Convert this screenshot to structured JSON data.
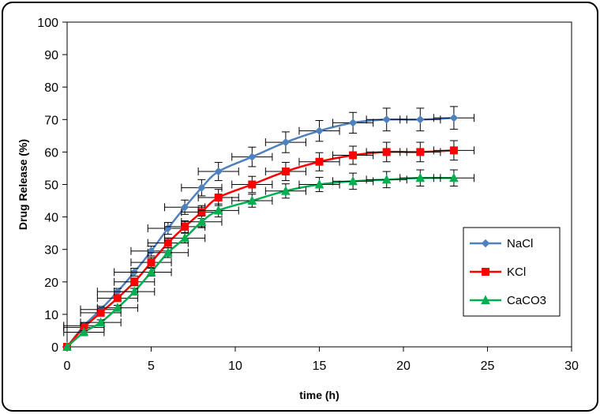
{
  "chart_data": {
    "type": "line",
    "title": "",
    "xlabel": "time (h)",
    "ylabel": "Drug Release (%)",
    "xlim": [
      0,
      30
    ],
    "ylim": [
      0,
      100
    ],
    "xticks": [
      0,
      5,
      10,
      15,
      20,
      25,
      30
    ],
    "yticks": [
      0,
      10,
      20,
      30,
      40,
      50,
      60,
      70,
      80,
      90,
      100
    ],
    "grid": false,
    "legend_position": "right",
    "x": [
      0,
      1,
      2,
      3,
      4,
      5,
      6,
      7,
      8,
      9,
      11,
      13,
      15,
      17,
      19,
      21,
      23
    ],
    "series": [
      {
        "name": "NaCl",
        "color": "#4F81BD",
        "marker": "diamond",
        "values": [
          0,
          6.5,
          11.5,
          17,
          23,
          29.5,
          36.5,
          43,
          49,
          54,
          58.5,
          63,
          66.5,
          69,
          70,
          70,
          70.5
        ],
        "error": [
          0,
          0.8,
          1,
          1,
          1.2,
          1.5,
          1.8,
          2.2,
          2.5,
          2.8,
          3,
          3.2,
          3.2,
          3.2,
          3.5,
          3.5,
          3.5
        ]
      },
      {
        "name": "KCl",
        "color": "#FF0000",
        "marker": "square",
        "values": [
          0,
          6,
          10.5,
          15,
          20,
          26,
          32,
          37,
          41.5,
          46,
          50,
          54,
          57,
          59,
          60,
          60,
          60.5
        ],
        "error": [
          0,
          0.8,
          1,
          1,
          1.2,
          1.5,
          1.5,
          1.8,
          2,
          2.5,
          2.5,
          2.8,
          2.8,
          2.8,
          3,
          3,
          3
        ]
      },
      {
        "name": "CaCO3",
        "color": "#00B050",
        "marker": "triangle",
        "values": [
          0,
          4.5,
          7.5,
          12,
          17,
          23,
          29,
          33.5,
          38.5,
          42,
          45,
          48,
          50,
          51,
          51.5,
          52,
          52
        ],
        "error": [
          0,
          0.5,
          0.8,
          0.8,
          1,
          1.2,
          1.5,
          1.5,
          1.8,
          2,
          2,
          2.2,
          2.2,
          2.5,
          2.5,
          2.5,
          2.5
        ]
      }
    ],
    "x_error": 1.2
  }
}
